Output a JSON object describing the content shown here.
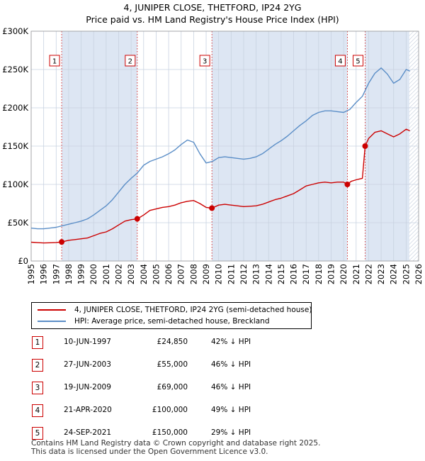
{
  "title_line1": "4, JUNIPER CLOSE, THETFORD, IP24 2YG",
  "title_line2": "Price paid vs. HM Land Registry's House Price Index (HPI)",
  "chart_data": {
    "type": "line",
    "xlim": [
      1995,
      2026
    ],
    "ylim": [
      0,
      300000
    ],
    "yticks": [
      0,
      50000,
      100000,
      150000,
      200000,
      250000,
      300000
    ],
    "ytick_labels": [
      "£0",
      "£50K",
      "£100K",
      "£150K",
      "£200K",
      "£250K",
      "£300K"
    ],
    "xticks": [
      1995,
      1996,
      1997,
      1998,
      1999,
      2000,
      2001,
      2002,
      2003,
      2004,
      2005,
      2006,
      2007,
      2008,
      2009,
      2010,
      2011,
      2012,
      2013,
      2014,
      2015,
      2016,
      2017,
      2018,
      2019,
      2020,
      2021,
      2022,
      2023,
      2024,
      2025,
      2026
    ],
    "grid": true,
    "future_from": 2025.25,
    "colors": {
      "property": "#cc0000",
      "hpi": "#5b8ec7",
      "shade": "#dde6f3",
      "grid": "#c8d2e0"
    },
    "series": [
      {
        "name": "4, JUNIPER CLOSE, THETFORD, IP24 2YG (semi-detached house)",
        "x": [
          1995.0,
          1995.5,
          1996.0,
          1996.5,
          1997.0,
          1997.44,
          1998.0,
          1998.5,
          1999.0,
          1999.5,
          2000.0,
          2000.5,
          2001.0,
          2001.5,
          2002.0,
          2002.5,
          2003.0,
          2003.49,
          2004.0,
          2004.5,
          2005.0,
          2005.5,
          2006.0,
          2006.5,
          2007.0,
          2007.5,
          2008.0,
          2008.5,
          2009.0,
          2009.46,
          2010.0,
          2010.5,
          2011.0,
          2011.5,
          2012.0,
          2012.5,
          2013.0,
          2013.5,
          2014.0,
          2014.5,
          2015.0,
          2015.5,
          2016.0,
          2016.5,
          2017.0,
          2017.5,
          2018.0,
          2018.5,
          2019.0,
          2019.5,
          2020.0,
          2020.3,
          2020.6,
          2021.0,
          2021.5,
          2021.72,
          2022.0,
          2022.5,
          2023.0,
          2023.5,
          2024.0,
          2024.5,
          2025.0,
          2025.3
        ],
        "y": [
          24500,
          24000,
          23500,
          23800,
          24200,
          24850,
          27000,
          28000,
          29000,
          30000,
          33000,
          36000,
          38000,
          42000,
          47000,
          52000,
          54000,
          55000,
          60000,
          66000,
          68000,
          70000,
          71000,
          73000,
          76000,
          78000,
          79000,
          75000,
          70000,
          69000,
          73000,
          74000,
          73000,
          72000,
          71000,
          71500,
          72000,
          74000,
          77000,
          80000,
          82000,
          85000,
          88000,
          93000,
          98000,
          100000,
          102000,
          103000,
          102000,
          103000,
          103000,
          100000,
          104000,
          106000,
          108000,
          150000,
          160000,
          168000,
          170000,
          166000,
          162000,
          166000,
          172000,
          170000
        ]
      },
      {
        "name": "HPI: Average price, semi-detached house, Breckland",
        "x": [
          1995.0,
          1995.5,
          1996.0,
          1996.5,
          1997.0,
          1997.5,
          1998.0,
          1998.5,
          1999.0,
          1999.5,
          2000.0,
          2000.5,
          2001.0,
          2001.5,
          2002.0,
          2002.5,
          2003.0,
          2003.5,
          2004.0,
          2004.5,
          2005.0,
          2005.5,
          2006.0,
          2006.5,
          2007.0,
          2007.5,
          2008.0,
          2008.5,
          2009.0,
          2009.5,
          2010.0,
          2010.5,
          2011.0,
          2011.5,
          2012.0,
          2012.5,
          2013.0,
          2013.5,
          2014.0,
          2014.5,
          2015.0,
          2015.5,
          2016.0,
          2016.5,
          2017.0,
          2017.5,
          2018.0,
          2018.5,
          2019.0,
          2019.5,
          2020.0,
          2020.5,
          2021.0,
          2021.5,
          2022.0,
          2022.5,
          2023.0,
          2023.5,
          2024.0,
          2024.5,
          2025.0,
          2025.3
        ],
        "y": [
          43000,
          42000,
          42000,
          43000,
          44000,
          46000,
          48000,
          50000,
          52000,
          55000,
          60000,
          66000,
          72000,
          80000,
          90000,
          100000,
          108000,
          115000,
          125000,
          130000,
          133000,
          136000,
          140000,
          145000,
          152000,
          158000,
          155000,
          140000,
          128000,
          130000,
          135000,
          136000,
          135000,
          134000,
          133000,
          134000,
          136000,
          140000,
          146000,
          152000,
          157000,
          163000,
          170000,
          177000,
          183000,
          190000,
          194000,
          196000,
          196000,
          195000,
          194000,
          198000,
          207000,
          215000,
          232000,
          245000,
          252000,
          244000,
          232000,
          237000,
          250000,
          248000
        ]
      }
    ],
    "sales": [
      {
        "label": "1",
        "x": 1997.44,
        "y": 24850
      },
      {
        "label": "2",
        "x": 2003.49,
        "y": 55000
      },
      {
        "label": "3",
        "x": 2009.46,
        "y": 69000
      },
      {
        "label": "4",
        "x": 2020.3,
        "y": 100000
      },
      {
        "label": "5",
        "x": 2021.72,
        "y": 150000
      }
    ],
    "shaded_ranges": [
      [
        1997.44,
        2003.49
      ],
      [
        2009.46,
        2020.3
      ],
      [
        2021.72,
        2025.25
      ]
    ]
  },
  "legend": {
    "property_label": "4, JUNIPER CLOSE, THETFORD, IP24 2YG (semi-detached house)",
    "hpi_label": "HPI: Average price, semi-detached house, Breckland"
  },
  "transactions": [
    {
      "num": "1",
      "date": "10-JUN-1997",
      "price": "£24,850",
      "hpi": "42% ↓ HPI"
    },
    {
      "num": "2",
      "date": "27-JUN-2003",
      "price": "£55,000",
      "hpi": "46% ↓ HPI"
    },
    {
      "num": "3",
      "date": "19-JUN-2009",
      "price": "£69,000",
      "hpi": "46% ↓ HPI"
    },
    {
      "num": "4",
      "date": "21-APR-2020",
      "price": "£100,000",
      "hpi": "49% ↓ HPI"
    },
    {
      "num": "5",
      "date": "24-SEP-2021",
      "price": "£150,000",
      "hpi": "29% ↓ HPI"
    }
  ],
  "footer_line1": "Contains HM Land Registry data © Crown copyright and database right 2025.",
  "footer_line2": "This data is licensed under the Open Government Licence v3.0."
}
